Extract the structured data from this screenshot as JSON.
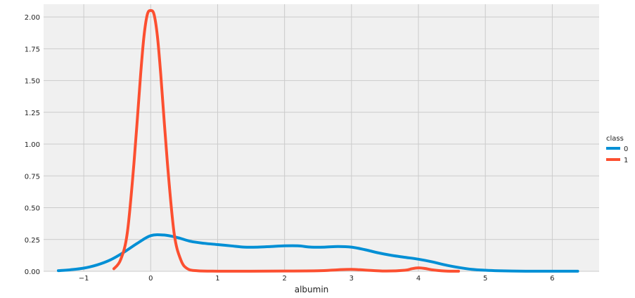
{
  "chart_data": {
    "type": "line",
    "title": "",
    "xlabel": "albumin",
    "ylabel": "",
    "xlim": [
      -1.6,
      6.7
    ],
    "ylim": [
      0,
      2.1
    ],
    "grid": true,
    "xticks": [
      -1,
      0,
      1,
      2,
      3,
      4,
      5,
      6
    ],
    "xtick_labels": [
      "−1",
      "0",
      "1",
      "2",
      "3",
      "4",
      "5",
      "6"
    ],
    "yticks": [
      0,
      0.25,
      0.5,
      0.75,
      1.0,
      1.25,
      1.5,
      1.75,
      2.0
    ],
    "ytick_labels": [
      "0.00",
      "0.25",
      "0.50",
      "0.75",
      "1.00",
      "1.25",
      "1.50",
      "1.75",
      "2.00"
    ],
    "legend": {
      "title": "class",
      "placement": "right"
    },
    "series": [
      {
        "name": "0",
        "color": "#008fd5",
        "x": [
          -1.38,
          -1.2,
          -1.0,
          -0.8,
          -0.6,
          -0.4,
          -0.2,
          0.0,
          0.2,
          0.4,
          0.6,
          0.8,
          1.0,
          1.2,
          1.4,
          1.6,
          1.8,
          2.0,
          2.2,
          2.4,
          2.6,
          2.8,
          3.0,
          3.2,
          3.4,
          3.6,
          3.8,
          4.0,
          4.2,
          4.4,
          4.6,
          4.8,
          5.0,
          5.2,
          5.4,
          5.6,
          5.8,
          6.0,
          6.2,
          6.38
        ],
        "y": [
          0.005,
          0.012,
          0.025,
          0.05,
          0.09,
          0.15,
          0.22,
          0.28,
          0.285,
          0.265,
          0.235,
          0.22,
          0.21,
          0.2,
          0.19,
          0.19,
          0.195,
          0.2,
          0.2,
          0.19,
          0.19,
          0.195,
          0.19,
          0.17,
          0.145,
          0.125,
          0.11,
          0.095,
          0.075,
          0.05,
          0.03,
          0.015,
          0.008,
          0.004,
          0.002,
          0.001,
          0.001,
          0.001,
          0.001,
          0.001
        ]
      },
      {
        "name": "1",
        "color": "#fc4f30",
        "x": [
          -0.55,
          -0.45,
          -0.35,
          -0.25,
          -0.15,
          -0.1,
          -0.05,
          0.0,
          0.05,
          0.1,
          0.15,
          0.25,
          0.35,
          0.45,
          0.55,
          0.7,
          1.0,
          1.5,
          2.0,
          2.5,
          2.8,
          3.0,
          3.2,
          3.5,
          3.8,
          3.9,
          4.0,
          4.1,
          4.2,
          4.4,
          4.6
        ],
        "y": [
          0.02,
          0.09,
          0.3,
          0.85,
          1.55,
          1.85,
          2.02,
          2.05,
          2.02,
          1.85,
          1.55,
          0.85,
          0.3,
          0.09,
          0.02,
          0.004,
          0.001,
          0.001,
          0.002,
          0.004,
          0.012,
          0.015,
          0.01,
          0.002,
          0.008,
          0.02,
          0.027,
          0.022,
          0.012,
          0.002,
          0.001
        ]
      }
    ]
  }
}
